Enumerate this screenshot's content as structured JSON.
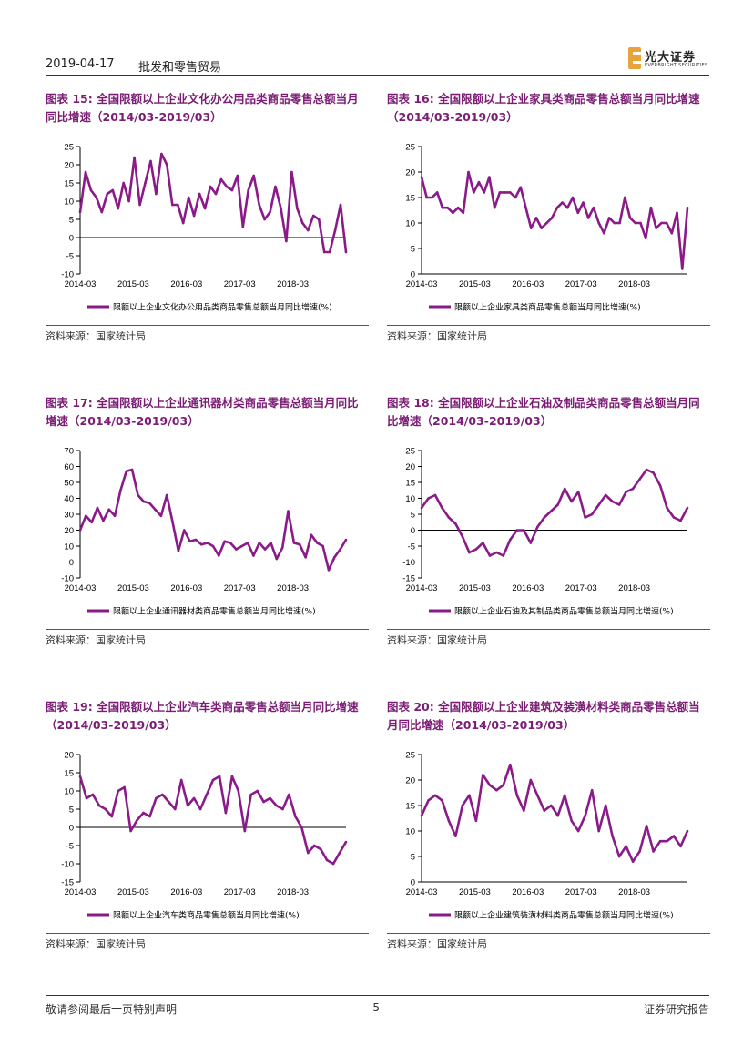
{
  "header": {
    "date": "2019-04-17",
    "sector": "批发和零售贸易"
  },
  "logo": {
    "cn": "光大证券",
    "en": "EVERBRIGHT SECURITIES"
  },
  "footer": {
    "disclaimer": "敬请参阅最后一页特别声明",
    "page": "-5-",
    "report_type": "证券研究报告"
  },
  "source_text": "资料来源：国家统计局",
  "colors": {
    "series": "#8b1a89",
    "title": "#7b1c75"
  },
  "chart_data": [
    {
      "id": "c15",
      "type": "line",
      "title": "图表 15: 全国限额以上企业文化办公用品类商品零售总额当月同比增速（2014/03-2019/03）",
      "legend": "限额以上企业文化办公用品类商品零售总额当月同比增速(%)",
      "ylim": [
        -10,
        25
      ],
      "yticks": [
        -10,
        -5,
        0,
        5,
        10,
        15,
        20,
        25
      ],
      "xticks": [
        "2014-03",
        "2015-03",
        "2016-03",
        "2017-03",
        "2018-03"
      ],
      "values": [
        7,
        18,
        13,
        11,
        7,
        12,
        13,
        8,
        15,
        10,
        22,
        9,
        15,
        21,
        12,
        23,
        20,
        9,
        9,
        4,
        11,
        6,
        12,
        8,
        14,
        12,
        16,
        14,
        13,
        17,
        3,
        13,
        17,
        9,
        5,
        7,
        14,
        8,
        -1,
        18,
        8,
        4,
        2,
        6,
        5,
        -4,
        -4,
        2,
        9,
        -4
      ]
    },
    {
      "id": "c16",
      "type": "line",
      "title": "图表 16: 全国限额以上企业家具类商品零售总额当月同比增速（2014/03-2019/03）",
      "legend": "限额以上企业家具类商品零售总额当月同比增速(%)",
      "ylim": [
        0,
        25
      ],
      "yticks": [
        0,
        5,
        10,
        15,
        20,
        25
      ],
      "xticks": [
        "2014-03",
        "2015-03",
        "2016-03",
        "2017-03",
        "2018-03"
      ],
      "values": [
        19,
        15,
        15,
        16,
        13,
        13,
        12,
        13,
        12,
        20,
        16,
        18,
        16,
        19,
        13,
        16,
        16,
        16,
        15,
        17,
        13,
        9,
        11,
        9,
        10,
        11,
        13,
        14,
        13,
        15,
        12,
        14,
        11,
        13,
        10,
        8,
        11,
        10,
        10,
        15,
        11,
        10,
        10,
        7,
        13,
        9,
        10,
        10,
        8,
        12,
        1,
        13
      ]
    },
    {
      "id": "c17",
      "type": "line",
      "title": "图表 17: 全国限额以上企业通讯器材类商品零售总额当月同比增速（2014/03-2019/03）",
      "legend": "限额以上企业通讯器材类商品零售总额当月同比增速(%)",
      "ylim": [
        -10,
        70
      ],
      "yticks": [
        -10,
        0,
        10,
        20,
        30,
        40,
        50,
        60,
        70
      ],
      "xticks": [
        "2014-03",
        "2015-03",
        "2016-03",
        "2017-03",
        "2018-03"
      ],
      "values": [
        20,
        29,
        25,
        34,
        26,
        33,
        29,
        45,
        57,
        58,
        42,
        38,
        37,
        33,
        29,
        42,
        25,
        7,
        20,
        13,
        14,
        11,
        12,
        10,
        4,
        13,
        12,
        8,
        10,
        12,
        4,
        12,
        8,
        12,
        2,
        9,
        32,
        12,
        11,
        3,
        17,
        12,
        10,
        -5,
        3,
        8,
        14
      ]
    },
    {
      "id": "c18",
      "type": "line",
      "title": "图表 18: 全国限额以上企业石油及制品类商品零售总额当月同比增速（2014/03-2019/03）",
      "legend": "限额以上企业石油及其制品类商品零售总额当月同比增速(%)",
      "ylim": [
        -15,
        25
      ],
      "yticks": [
        -15,
        -10,
        -5,
        0,
        5,
        10,
        15,
        20,
        25
      ],
      "xticks": [
        "2014-03",
        "2015-03",
        "2016-03",
        "2017-03",
        "2018-03"
      ],
      "values": [
        7,
        10,
        11,
        7,
        4,
        2,
        -2,
        -7,
        -6,
        -4,
        -8,
        -7,
        -8,
        -3,
        0,
        0,
        -4,
        1,
        4,
        6,
        8,
        13,
        9,
        12,
        4,
        5,
        8,
        11,
        9,
        8,
        12,
        13,
        16,
        19,
        18,
        14,
        7,
        4,
        3,
        7
      ]
    },
    {
      "id": "c19",
      "type": "line",
      "title": "图表 19: 全国限额以上企业汽车类商品零售总额当月同比增速（2014/03-2019/03）",
      "legend": "限额以上企业汽车类商品零售总额当月同比增速(%)",
      "ylim": [
        -15,
        20
      ],
      "yticks": [
        -15,
        -10,
        -5,
        0,
        5,
        10,
        15,
        20
      ],
      "xticks": [
        "2014-03",
        "2015-03",
        "2016-03",
        "2017-03",
        "2018-03"
      ],
      "values": [
        14,
        8,
        9,
        6,
        5,
        3,
        10,
        11,
        -1,
        2,
        4,
        3,
        8,
        9,
        7,
        5,
        13,
        6,
        8,
        5,
        9,
        13,
        14,
        4,
        14,
        10,
        -1,
        9,
        10,
        7,
        8,
        6,
        5,
        9,
        3,
        0,
        -7,
        -5,
        -6,
        -9,
        -10,
        -7,
        -4
      ]
    },
    {
      "id": "c20",
      "type": "line",
      "title": "图表 20: 全国限额以上企业建筑及装潢材料类商品零售总额当月同比增速（2014/03-2019/03）",
      "legend": "限额以上企业建筑装潢材料类商品零售总额当月同比增速(%)",
      "ylim": [
        0,
        25
      ],
      "yticks": [
        0,
        5,
        10,
        15,
        20,
        25
      ],
      "xticks": [
        "2014-03",
        "2015-03",
        "2016-03",
        "2017-03",
        "2018-03"
      ],
      "values": [
        13,
        16,
        17,
        16,
        12,
        9,
        15,
        17,
        12,
        21,
        19,
        18,
        19,
        23,
        17,
        14,
        20,
        17,
        14,
        15,
        13,
        17,
        12,
        10,
        13,
        18,
        10,
        15,
        9,
        5,
        7,
        4,
        6,
        11,
        6,
        8,
        8,
        9,
        7,
        10
      ]
    }
  ]
}
